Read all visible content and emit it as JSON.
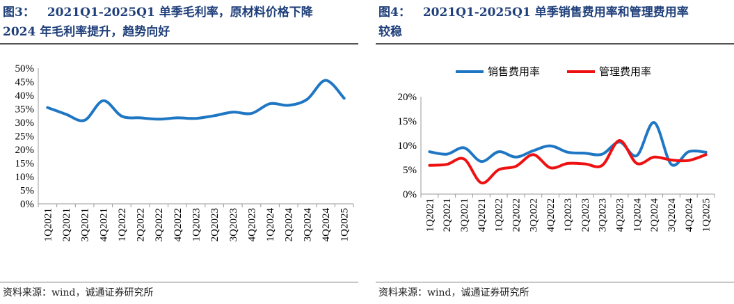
{
  "left": {
    "fig_label": "图3：",
    "title_line1": "2021Q1-2025Q1 单季毛利率，原材料价格下降",
    "title_line2": "2024 年毛利率提升，趋势向好",
    "source": "资料来源：wind，诚通证券研究所"
  },
  "right": {
    "fig_label": "图4：",
    "title_line1": "2021Q1-2025Q1 单季销售费用率和管理费用率",
    "title_line2": "较稳",
    "source": "资料来源：wind，诚通证券研究所"
  },
  "colors": {
    "blue": "#1f77c4",
    "red": "#ee1111",
    "title": "#1f3f7a"
  },
  "chart_data": [
    {
      "type": "line",
      "title": "2021Q1-2025Q1 单季毛利率",
      "categories": [
        "1Q2021",
        "2Q2021",
        "3Q2021",
        "4Q2021",
        "1Q2022",
        "2Q2022",
        "3Q2022",
        "4Q2022",
        "1Q2023",
        "2Q2023",
        "3Q2023",
        "4Q2023",
        "1Q2024",
        "2Q2024",
        "3Q2024",
        "4Q2024",
        "1Q2025"
      ],
      "series": [
        {
          "name": "毛利率",
          "values": [
            35.5,
            33.0,
            30.8,
            38.0,
            32.3,
            31.7,
            31.2,
            31.7,
            31.5,
            32.5,
            33.8,
            33.3,
            36.9,
            36.3,
            38.5,
            45.5,
            38.9
          ]
        }
      ],
      "yticks": [
        "0%",
        "5%",
        "10%",
        "15%",
        "20%",
        "25%",
        "30%",
        "35%",
        "40%",
        "45%",
        "50%"
      ],
      "ylim": [
        0,
        50
      ],
      "legend": "none"
    },
    {
      "type": "line",
      "title": "2021Q1-2025Q1 单季销售费用率和管理费用率",
      "categories": [
        "1Q2021",
        "2Q2021",
        "3Q2021",
        "4Q2021",
        "1Q2022",
        "2Q2022",
        "3Q2022",
        "4Q2022",
        "1Q2023",
        "2Q2023",
        "3Q2023",
        "4Q2023",
        "1Q2024",
        "2Q2024",
        "3Q2024",
        "4Q2024",
        "1Q2025"
      ],
      "series": [
        {
          "name": "销售费用率",
          "values": [
            8.7,
            8.2,
            9.5,
            6.7,
            8.7,
            7.6,
            8.9,
            9.9,
            8.6,
            8.4,
            8.2,
            10.7,
            7.9,
            14.7,
            6.1,
            8.7,
            8.6
          ]
        },
        {
          "name": "管理费用率",
          "values": [
            5.9,
            6.1,
            7.2,
            2.3,
            5.0,
            5.7,
            8.1,
            5.4,
            6.3,
            6.2,
            5.9,
            11.0,
            6.3,
            7.6,
            7.0,
            6.9,
            8.1
          ]
        }
      ],
      "yticks": [
        "0%",
        "5%",
        "10%",
        "15%",
        "20%"
      ],
      "ylim": [
        0,
        20
      ],
      "legend": "top"
    }
  ]
}
